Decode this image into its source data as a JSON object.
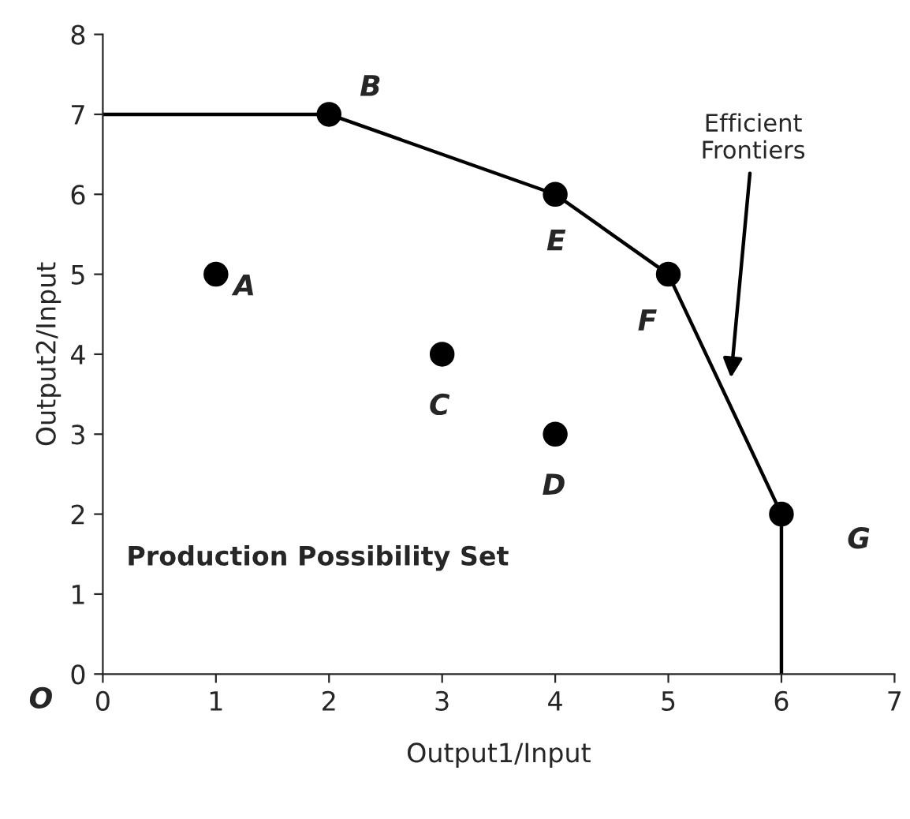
{
  "chart_data": {
    "type": "scatter",
    "xlabel": "Output1/Input",
    "ylabel": "Output2/Input",
    "xlim": [
      0,
      7
    ],
    "ylim": [
      0,
      8
    ],
    "xticks": [
      0,
      1,
      2,
      3,
      4,
      5,
      6,
      7
    ],
    "yticks": [
      0,
      1,
      2,
      3,
      4,
      5,
      6,
      7,
      8
    ],
    "grid": false,
    "marker": "circle",
    "series": [
      {
        "type": "line",
        "color": "#000000",
        "marker": "none",
        "x": [
          0,
          2,
          4,
          5,
          6,
          6
        ],
        "values": [
          7,
          7,
          6,
          5,
          2,
          0
        ]
      },
      {
        "color": "#000000",
        "x": [
          1,
          2,
          3,
          4,
          4,
          5,
          6
        ],
        "values": [
          5,
          7,
          4,
          3,
          6,
          5,
          2
        ]
      }
    ],
    "annotations": [
      {
        "text": "A",
        "x": 1,
        "y": 5
      },
      {
        "text": "B",
        "x": 2,
        "y": 7
      },
      {
        "text": "C",
        "x": 3,
        "y": 4
      },
      {
        "text": "D",
        "x": 4,
        "y": 3
      },
      {
        "text": "E",
        "x": 4,
        "y": 6
      },
      {
        "text": "F",
        "x": 5,
        "y": 5
      },
      {
        "text": "G",
        "x": 6,
        "y": 2
      },
      "O",
      "Production Possibility Set",
      "Efficient\nFrontiers"
    ]
  }
}
